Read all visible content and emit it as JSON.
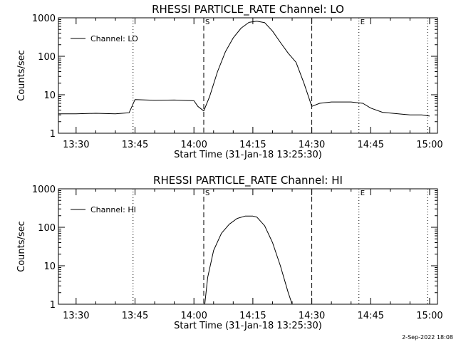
{
  "colors": {
    "background": "#ffffff",
    "foreground": "#000000"
  },
  "footer": {
    "timestamp": "2-Sep-2022 18:08"
  },
  "chart_data": [
    {
      "type": "line",
      "title": "RHESSI PARTICLE_RATE Channel: LO",
      "xlabel": "Start Time (31-Jan-18 13:25:30)",
      "ylabel": "Counts/sec",
      "xlim": [
        "13:25:30",
        "15:02:00"
      ],
      "ylim": [
        1,
        1000
      ],
      "yscale": "log",
      "x_ticks": [
        "13:30",
        "13:45",
        "14:00",
        "14:15",
        "14:30",
        "14:45",
        "15:00"
      ],
      "y_ticks": [
        "1",
        "10",
        "100",
        "1000"
      ],
      "legend": {
        "label": "Channel: LO",
        "position": "top-left"
      },
      "markers": [
        {
          "label": "S",
          "time": "14:02:30",
          "style": "dashed"
        },
        {
          "label": "",
          "time": "14:30:00",
          "style": "dashed"
        },
        {
          "label": "E",
          "time": "14:42:00",
          "style": "dotted"
        },
        {
          "label": "",
          "time": "13:44:30",
          "style": "dotted"
        },
        {
          "label": "",
          "time": "14:59:30",
          "style": "dotted"
        }
      ],
      "series": [
        {
          "name": "Channel: LO",
          "x": [
            "13:25:30",
            "13:30:00",
            "13:35:00",
            "13:40:00",
            "13:43:30",
            "13:45:00",
            "13:50:00",
            "13:55:00",
            "14:00:00",
            "14:01:00",
            "14:02:30",
            "14:04:00",
            "14:06:00",
            "14:08:00",
            "14:10:00",
            "14:12:00",
            "14:14:00",
            "14:16:00",
            "14:18:00",
            "14:20:00",
            "14:22:00",
            "14:24:00",
            "14:26:00",
            "14:28:00",
            "14:30:00",
            "14:32:00",
            "14:35:00",
            "14:40:00",
            "14:43:00",
            "14:45:00",
            "14:48:00",
            "14:52:00",
            "14:55:00",
            "14:58:00",
            "15:00:00"
          ],
          "y": [
            3.2,
            3.2,
            3.3,
            3.2,
            3.4,
            7.5,
            7.2,
            7.3,
            7.0,
            5.0,
            3.8,
            9,
            40,
            130,
            300,
            540,
            760,
            820,
            750,
            450,
            230,
            120,
            70,
            20,
            5.0,
            6.0,
            6.5,
            6.5,
            6.0,
            4.5,
            3.5,
            3.2,
            3.0,
            3.0,
            2.8
          ]
        }
      ]
    },
    {
      "type": "line",
      "title": "RHESSI PARTICLE_RATE Channel: HI",
      "xlabel": "Start Time (31-Jan-18 13:25:30)",
      "ylabel": "Counts/sec",
      "xlim": [
        "13:25:30",
        "15:02:00"
      ],
      "ylim": [
        1,
        1000
      ],
      "yscale": "log",
      "x_ticks": [
        "13:30",
        "13:45",
        "14:00",
        "14:15",
        "14:30",
        "14:45",
        "15:00"
      ],
      "y_ticks": [
        "1",
        "10",
        "100",
        "1000"
      ],
      "legend": {
        "label": "Channel: HI",
        "position": "top-left"
      },
      "markers": [
        {
          "label": "S",
          "time": "14:02:30",
          "style": "dashed"
        },
        {
          "label": "",
          "time": "14:30:00",
          "style": "dashed"
        },
        {
          "label": "E",
          "time": "14:42:00",
          "style": "dotted"
        },
        {
          "label": "",
          "time": "13:44:30",
          "style": "dotted"
        },
        {
          "label": "",
          "time": "14:59:30",
          "style": "dotted"
        }
      ],
      "series": [
        {
          "name": "Channel: HI",
          "x": [
            "14:02:45",
            "14:03:30",
            "14:05:00",
            "14:07:00",
            "14:09:00",
            "14:11:00",
            "14:13:00",
            "14:15:00",
            "14:16:00",
            "14:18:00",
            "14:20:00",
            "14:22:00",
            "14:24:00",
            "14:25:00"
          ],
          "y": [
            1.0,
            5,
            25,
            70,
            120,
            170,
            195,
            195,
            185,
            110,
            40,
            10,
            2,
            1.0
          ]
        }
      ]
    }
  ]
}
